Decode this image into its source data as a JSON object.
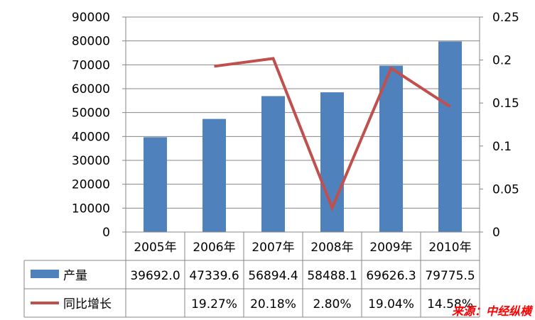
{
  "chart_data": {
    "type": "bar",
    "categories": [
      "2005年",
      "2006年",
      "2007年",
      "2008年",
      "2009年",
      "2010年"
    ],
    "series": [
      {
        "name": "产量",
        "type": "bar",
        "axis": "left",
        "values": [
          39692.0,
          47339.6,
          56894.4,
          58488.1,
          69626.3,
          79775.5
        ],
        "labels": [
          "39692.0",
          "47339.6",
          "56894.4",
          "58488.1",
          "69626.3",
          "79775.5"
        ]
      },
      {
        "name": "同比增长",
        "type": "line",
        "axis": "right",
        "values": [
          null,
          0.1927,
          0.2018,
          0.028,
          0.1904,
          0.1458
        ],
        "labels": [
          "",
          "19.27%",
          "20.18%",
          "2.80%",
          "19.04%",
          "14.58%"
        ]
      }
    ],
    "y_left": {
      "lim": [
        0,
        90000
      ],
      "ticks": [
        "0",
        "10000",
        "20000",
        "30000",
        "40000",
        "50000",
        "60000",
        "70000",
        "80000",
        "90000"
      ]
    },
    "y_right": {
      "lim": [
        0,
        0.25
      ],
      "ticks": [
        "0",
        "0.05",
        "0.1",
        "0.15",
        "0.2",
        "0.25"
      ]
    },
    "grid": true,
    "legend": "data-table"
  },
  "colors": {
    "bar": "#4F81BD",
    "line": "#C0504D",
    "grid": "#878787",
    "source": "#FF0000"
  },
  "source_label": "来源：中经纵横"
}
